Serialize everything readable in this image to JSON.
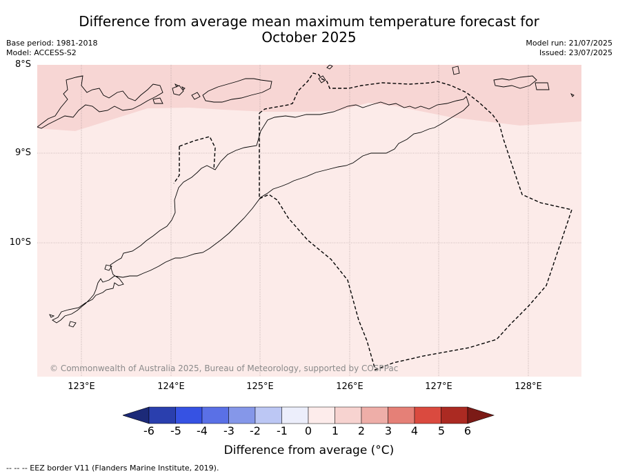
{
  "title_line1": "Difference from average mean maximum temperature forecast for",
  "title_line2": "October 2025",
  "base_period": "Base period: 1981-2018",
  "model": "Model: ACCESS-S2",
  "model_run": "Model run: 21/07/2025",
  "issued": "Issued: 23/07/2025",
  "lat_labels": [
    "8°S",
    "9°S",
    "10°S"
  ],
  "lon_labels": [
    "123°E",
    "124°E",
    "125°E",
    "126°E",
    "127°E",
    "128°E"
  ],
  "copyright": "© Commonwealth of Australia 2025, Bureau of Meteorology, supported by COSPPac",
  "colorbar": {
    "label": "Difference from average (°C)",
    "ticks": [
      "-6",
      "-5",
      "-4",
      "-3",
      "-2",
      "-1",
      "0",
      "1",
      "2",
      "3",
      "4",
      "5",
      "6"
    ],
    "colors": [
      "#1c2a78",
      "#2a3fae",
      "#3652e3",
      "#5a70e6",
      "#8597e9",
      "#bcc7f4",
      "#eceefb",
      "#fdeceb",
      "#f7d3d0",
      "#eeaea8",
      "#e58077",
      "#da4a3f",
      "#ab2a22",
      "#7b1a16"
    ]
  },
  "footnote": "--  --  -- EEZ border V11 (Flanders Marine Institute, 2019).",
  "map_fill": {
    "low_category": "0 to 1",
    "high_category": "1 to 2",
    "low_color": "#fcebe9",
    "high_color": "#f7d6d4"
  }
}
